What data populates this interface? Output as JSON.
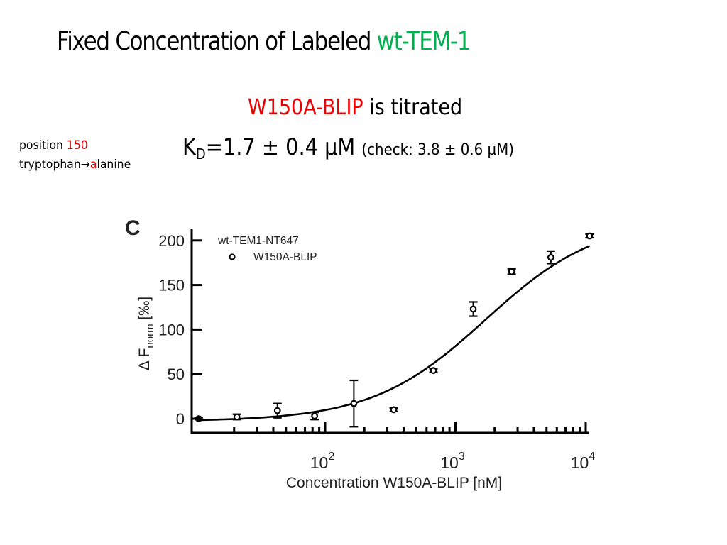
{
  "slide": {
    "title_main": "Fixed Concentration of Labeled ",
    "title_accent": "wt-TEM-1",
    "subtitle_red": "W150A-BLIP",
    "subtitle_rest": " is titrated",
    "kd_label": "K",
    "kd_sub": "D",
    "kd_value": "=1.7 ± 0.4 µM",
    "kd_check": "(check: 3.8 ± 0.6 µM)",
    "note_line1_text": "position ",
    "note_line1_red": "150",
    "note_line2_text": "tryptophan",
    "note_arrow": "→",
    "note_line2_red": "a",
    "note_line2_rest": "lanine",
    "colors": {
      "accent_green": "#00b050",
      "accent_red": "#ee0000"
    }
  },
  "chart_data": {
    "type": "scatter",
    "panel_label": "C",
    "title": "",
    "xlabel": "Concentration W150A-BLIP [nM]",
    "ylabel_prefix": "Δ F",
    "ylabel_sub": "norm",
    "ylabel_suffix": " [‰]",
    "xscale": "log",
    "xlim": [
      9.5,
      11000
    ],
    "ylim": [
      -15,
      215
    ],
    "xticks_major": [
      {
        "value": 100,
        "base": "10",
        "exp": "2"
      },
      {
        "value": 1000,
        "base": "10",
        "exp": "3"
      },
      {
        "value": 10000,
        "base": "10",
        "exp": "4"
      }
    ],
    "yticks": [
      {
        "value": 0,
        "label": "0"
      },
      {
        "value": 50,
        "label": "50"
      },
      {
        "value": 100,
        "label": "100"
      },
      {
        "value": 150,
        "label": "150"
      },
      {
        "value": 200,
        "label": "200"
      }
    ],
    "legend": {
      "placement": "top-left",
      "header": "wt-TEM1-NT647",
      "entries": [
        "W150A-BLIP"
      ]
    },
    "series": [
      {
        "name": "W150A-BLIP",
        "marker": "open-circle",
        "x": [
          10.7,
          21,
          43,
          83,
          166,
          336,
          678,
          1370,
          2700,
          5400,
          10700
        ],
        "y": [
          0,
          2,
          9,
          3,
          17,
          10,
          54,
          123,
          165,
          181,
          205
        ],
        "yerr": [
          1,
          3,
          8,
          4,
          26,
          2,
          2,
          8,
          3,
          7,
          2
        ]
      }
    ],
    "fit": {
      "name": "binding fit",
      "model": "sigmoid",
      "kd_nM": 1700,
      "baseline": -3,
      "amplitude": 228,
      "hill": 1.0
    },
    "grid": false
  }
}
